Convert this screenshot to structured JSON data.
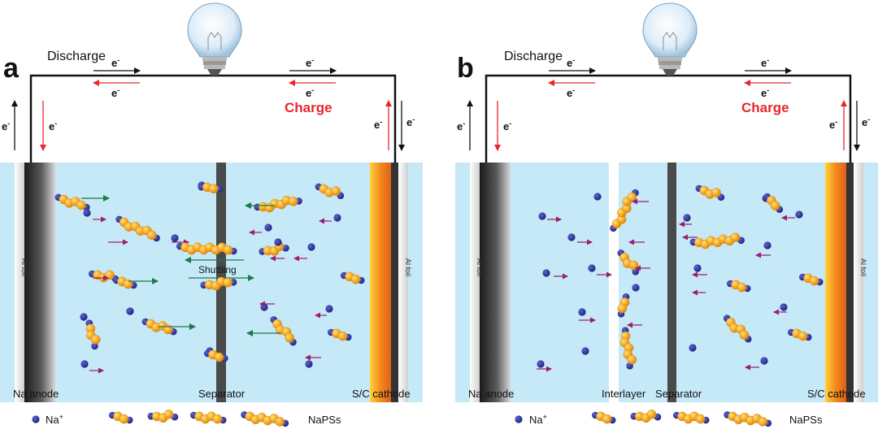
{
  "panels": [
    {
      "letter": "a",
      "discharge_label": "Discharge",
      "charge_label": "Charge",
      "electron": "e",
      "electron_sup": "-",
      "al_foil_left": "Al foil",
      "al_foil_right": "Al foil",
      "anode_label": "Na anode",
      "separator_label": "Separator",
      "cathode_label": "S/C cathode",
      "shuttling_label": "Shuttling"
    },
    {
      "letter": "b",
      "discharge_label": "Discharge",
      "charge_label": "Charge",
      "electron": "e",
      "electron_sup": "-",
      "al_foil_left": "Al foil",
      "al_foil_right": "Al foil",
      "anode_label": "Na anode",
      "interlayer_label": "Interlayer",
      "separator_label": "Separator",
      "cathode_label": "S/C cathode"
    }
  ],
  "legend": [
    {
      "na_label": "Na",
      "na_sup": "+",
      "napss_label": "NaPSs"
    },
    {
      "na_label": "Na",
      "na_sup": "+",
      "napss_label": "NaPSs"
    }
  ],
  "colors": {
    "electrolyte": "#c6e9f8",
    "na_ion": "#2a2f8f",
    "sulfur": "#f5a623",
    "charge_red": "#e8262a",
    "ion_arrow": "#9b1f6e",
    "shuttle_arrow": "#1a7a4a",
    "cathode_orange": "#f28a1e"
  }
}
